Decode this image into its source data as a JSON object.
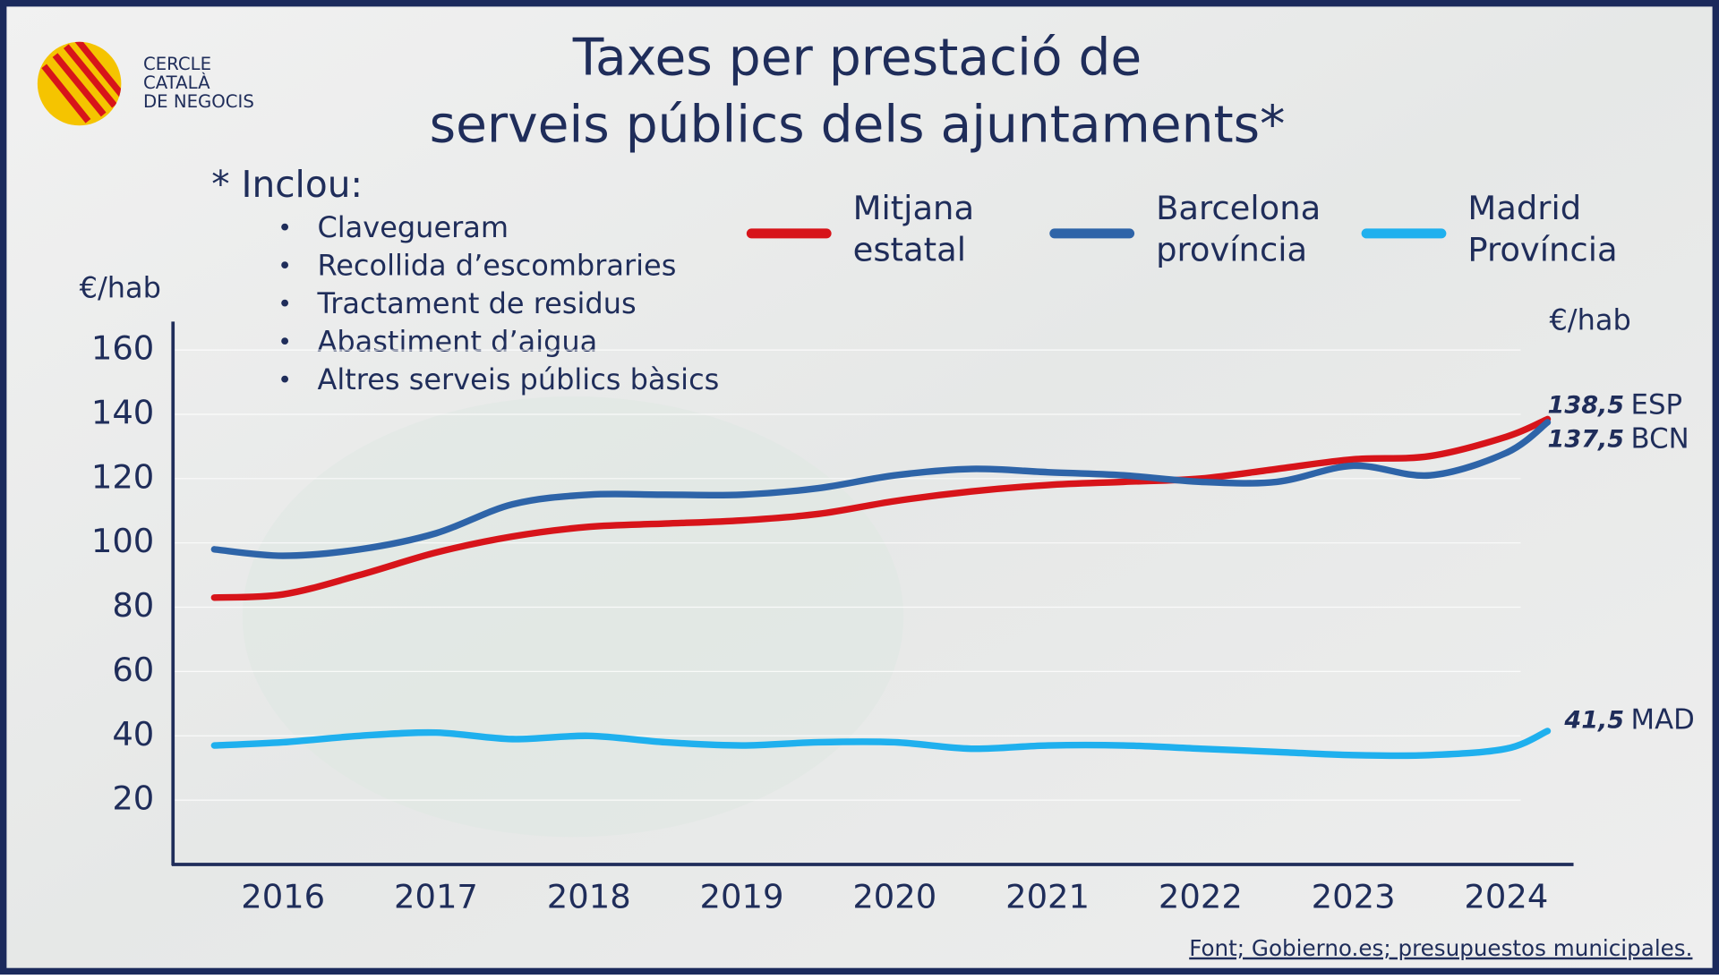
{
  "logo": {
    "lines": [
      "CERCLE",
      "CATALÀ",
      "DE NEGOCIS"
    ]
  },
  "chart_data": {
    "type": "line",
    "title": [
      "Taxes per prestació de",
      "serveis públics dels ajuntaments*"
    ],
    "note_title": "* Inclou:",
    "note_items": [
      "Clavegueram",
      "Recollida d’escombraries",
      "Tractament de residus",
      "Abastiment d’aigua",
      "Altres serveis públics bàsics"
    ],
    "ylabel": "€/hab",
    "right_label": "€/hab",
    "source": "Font; Gobierno.es; presupuestos municipales.",
    "x": [
      2015.55,
      2016,
      2016.5,
      2017,
      2017.5,
      2018,
      2018.5,
      2019,
      2019.5,
      2020,
      2020.5,
      2021,
      2021.5,
      2022,
      2022.5,
      2023,
      2023.5,
      2024,
      2024.27
    ],
    "xlim": [
      2015.28,
      2024.44
    ],
    "xticks": [
      2016,
      2017,
      2018,
      2019,
      2020,
      2021,
      2022,
      2023,
      2024
    ],
    "ylim": [
      0,
      170
    ],
    "yticks": [
      20,
      40,
      60,
      80,
      100,
      120,
      140,
      160
    ],
    "grid": true,
    "series": [
      {
        "name": "Mitjana estatal",
        "color": "#d7141a",
        "tag": "ESP",
        "values": [
          83,
          84,
          90,
          97,
          102,
          105,
          106,
          107,
          109,
          113,
          116,
          118,
          119,
          120,
          123,
          126,
          127,
          133,
          138.5
        ],
        "value_labels": [
          null,
          null,
          null,
          null,
          null,
          null,
          null,
          null,
          null,
          null,
          null,
          null,
          null,
          null,
          null,
          null,
          null,
          null,
          "138,5"
        ]
      },
      {
        "name": "Barcelona província",
        "color": "#2e64a8",
        "tag": "BCN",
        "values": [
          98,
          96,
          98,
          103,
          112,
          115,
          115,
          115,
          117,
          121,
          123,
          122,
          121,
          119,
          119,
          124,
          121,
          128,
          137.5
        ],
        "value_labels": [
          null,
          null,
          null,
          null,
          null,
          null,
          null,
          null,
          null,
          null,
          null,
          null,
          null,
          null,
          null,
          null,
          null,
          null,
          "137,5"
        ]
      },
      {
        "name": "Madrid Província",
        "color": "#1fb0ee",
        "tag": "MAD",
        "values": [
          37,
          38,
          40,
          41,
          39,
          40,
          38,
          37,
          38,
          38,
          36,
          37,
          37,
          36,
          35,
          34,
          34,
          36,
          41.5
        ],
        "value_labels": [
          null,
          null,
          null,
          null,
          null,
          null,
          null,
          null,
          null,
          null,
          null,
          null,
          null,
          null,
          null,
          null,
          null,
          null,
          "41,5"
        ]
      }
    ]
  }
}
